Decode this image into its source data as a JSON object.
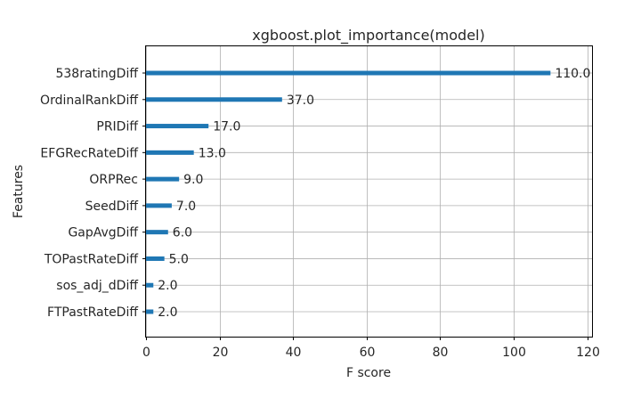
{
  "chart_data": {
    "type": "bar",
    "orientation": "horizontal",
    "title": "xgboost.plot_importance(model)",
    "xlabel": "F score",
    "ylabel": "Features",
    "categories": [
      "FTPastRateDiff",
      "sos_adj_dDiff",
      "TOPastRateDiff",
      "GapAvgDiff",
      "SeedDiff",
      "ORPRec",
      "EFGRecRateDiff",
      "PRIDiff",
      "OrdinalRankDiff",
      "538ratingDiff"
    ],
    "values": [
      2.0,
      2.0,
      5.0,
      6.0,
      7.0,
      9.0,
      13.0,
      17.0,
      37.0,
      110.0
    ],
    "value_labels": [
      "2.0",
      "2.0",
      "5.0",
      "6.0",
      "7.0",
      "9.0",
      "13.0",
      "17.0",
      "37.0",
      "110.0"
    ],
    "xticks": [
      "0",
      "20",
      "40",
      "60",
      "80",
      "100",
      "120"
    ],
    "xtick_values": [
      0,
      20,
      40,
      60,
      80,
      100,
      120
    ],
    "xlim": [
      0,
      121.3
    ],
    "grid": true,
    "bar_color": "#1f77b4"
  }
}
